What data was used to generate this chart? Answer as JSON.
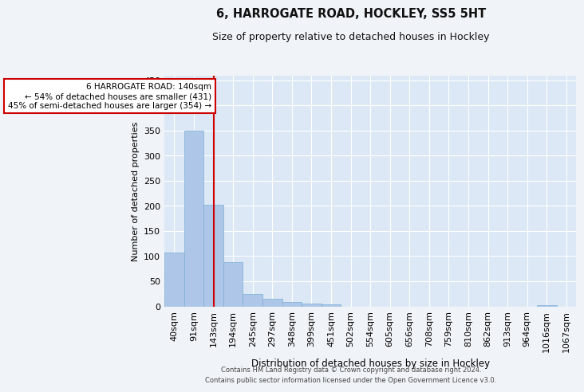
{
  "title": "6, HARROGATE ROAD, HOCKLEY, SS5 5HT",
  "subtitle": "Size of property relative to detached houses in Hockley",
  "xlabel": "Distribution of detached houses by size in Hockley",
  "ylabel": "Number of detached properties",
  "bar_labels": [
    "40sqm",
    "91sqm",
    "143sqm",
    "194sqm",
    "245sqm",
    "297sqm",
    "348sqm",
    "399sqm",
    "451sqm",
    "502sqm",
    "554sqm",
    "605sqm",
    "656sqm",
    "708sqm",
    "759sqm",
    "810sqm",
    "862sqm",
    "913sqm",
    "964sqm",
    "1016sqm",
    "1067sqm"
  ],
  "bar_values": [
    107,
    349,
    203,
    88,
    25,
    15,
    9,
    6,
    4,
    0,
    0,
    0,
    0,
    0,
    0,
    0,
    0,
    0,
    0,
    2,
    0
  ],
  "bar_color": "#aec6e8",
  "bar_edge_color": "#7bafd4",
  "bg_color": "#dce8f5",
  "grid_color": "#ffffff",
  "marker_label_line1": "6 HARROGATE ROAD: 140sqm",
  "marker_label_line2": "← 54% of detached houses are smaller (431)",
  "marker_label_line3": "45% of semi-detached houses are larger (354) →",
  "annotation_box_edge": "#cc0000",
  "annotation_box_bg": "#ffffff",
  "marker_line_color": "#cc0000",
  "ylim": [
    0,
    460
  ],
  "yticks": [
    0,
    50,
    100,
    150,
    200,
    250,
    300,
    350,
    400,
    450
  ],
  "footer_line1": "Contains HM Land Registry data © Crown copyright and database right 2024.",
  "footer_line2": "Contains public sector information licensed under the Open Government Licence v3.0."
}
